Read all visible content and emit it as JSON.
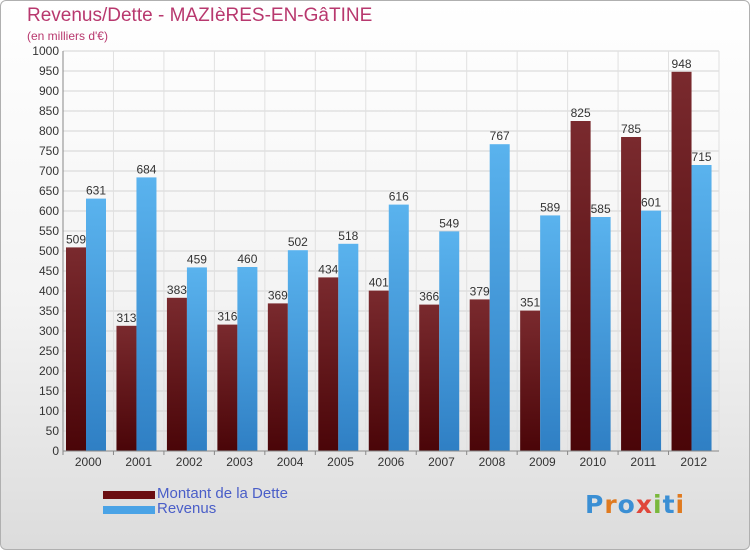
{
  "chart_data": {
    "type": "bar",
    "title": "Revenus/Dette - MAZIèRES-EN-GâTINE",
    "subtitle": "(en milliers d'€)",
    "categories": [
      "2000",
      "2001",
      "2002",
      "2003",
      "2004",
      "2005",
      "2006",
      "2007",
      "2008",
      "2009",
      "2010",
      "2011",
      "2012"
    ],
    "series": [
      {
        "name": "Montant de la Dette",
        "color": "#6b0e12",
        "values": [
          509,
          313,
          383,
          316,
          369,
          434,
          401,
          366,
          379,
          351,
          825,
          785,
          948
        ]
      },
      {
        "name": "Revenus",
        "color": "#4aa3e6",
        "values": [
          631,
          684,
          459,
          460,
          502,
          518,
          616,
          549,
          767,
          589,
          585,
          601,
          715
        ]
      }
    ],
    "ylim": [
      0,
      1000
    ],
    "ytick_step": 50,
    "grid": true,
    "legend_position": "bottom-left"
  },
  "brand": {
    "logo_text": "Proxiti"
  },
  "colors": {
    "title": "#b8386e",
    "legend_text": "#4a5ec8",
    "dette": "#6b0e12",
    "revenus": "#4aa3e6"
  }
}
